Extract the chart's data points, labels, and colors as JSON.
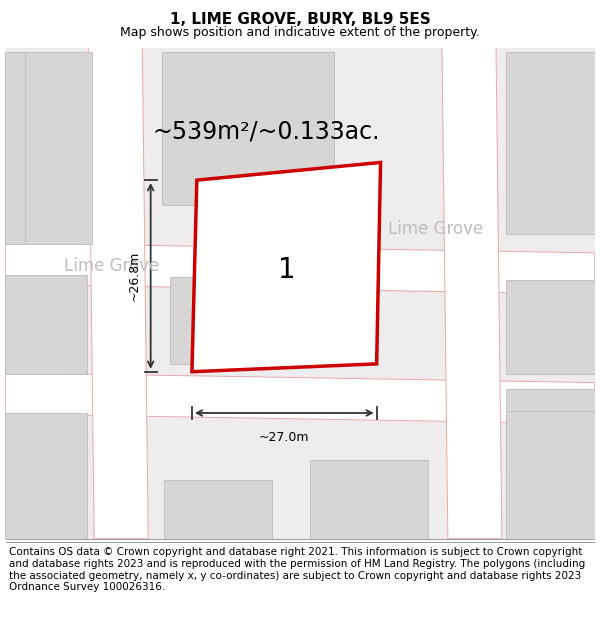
{
  "title": "1, LIME GROVE, BURY, BL9 5ES",
  "subtitle": "Map shows position and indicative extent of the property.",
  "area_label": "~539m²/~0.133ac.",
  "width_label": "~27.0m",
  "height_label": "~26.8m",
  "property_number": "1",
  "street_name_upper": "Lime Grove",
  "street_name_lower": "Lime Grove",
  "footer": "Contains OS data © Crown copyright and database right 2021. This information is subject to Crown copyright and database rights 2023 and is reproduced with the permission of HM Land Registry. The polygons (including the associated geometry, namely x, y co-ordinates) are subject to Crown copyright and database rights 2023 Ordnance Survey 100026316.",
  "bg_color": "#eeecec",
  "road_color": "#ffffff",
  "building_color": "#d8d5d5",
  "building_border": "#c0bcbc",
  "grid_line_color": "#e8a8a8",
  "property_color": "#cc0000",
  "dim_line_color": "#333333",
  "title_fontsize": 11,
  "subtitle_fontsize": 9,
  "area_fontsize": 17,
  "street_fontsize": 12,
  "number_fontsize": 20,
  "footer_fontsize": 7.5
}
